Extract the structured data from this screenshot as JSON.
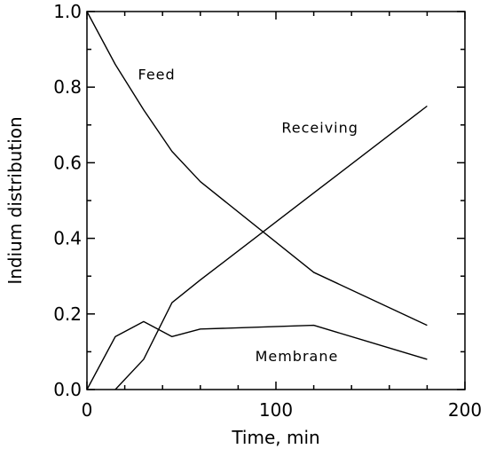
{
  "chart_data": {
    "type": "line",
    "xlabel": "Time, min",
    "ylabel": "Indium distribution",
    "xlim": [
      0,
      200
    ],
    "ylim": [
      0,
      1.0
    ],
    "x_ticks": [
      "0",
      "100",
      "200"
    ],
    "y_ticks": [
      "0.0",
      "0.2",
      "0.4",
      "0.6",
      "0.8",
      "1.0"
    ],
    "grid": false,
    "legend": "none",
    "series": [
      {
        "name": "Feed",
        "x": [
          0,
          15,
          30,
          45,
          60,
          120,
          180
        ],
        "y": [
          1.0,
          0.86,
          0.74,
          0.63,
          0.55,
          0.31,
          0.17
        ]
      },
      {
        "name": "Receiving",
        "x": [
          15,
          30,
          45,
          60,
          120,
          180
        ],
        "y": [
          0.0,
          0.08,
          0.23,
          0.29,
          0.52,
          0.75
        ]
      },
      {
        "name": "Membrane",
        "x": [
          0,
          15,
          30,
          45,
          60,
          120,
          180
        ],
        "y": [
          0.0,
          0.14,
          0.18,
          0.14,
          0.16,
          0.17,
          0.08
        ]
      }
    ],
    "label_anchors": [
      {
        "series": "Feed",
        "x": 27,
        "y": 0.82
      },
      {
        "series": "Receiving",
        "x": 103,
        "y": 0.68
      },
      {
        "series": "Membrane",
        "x": 89,
        "y": 0.075
      }
    ]
  }
}
